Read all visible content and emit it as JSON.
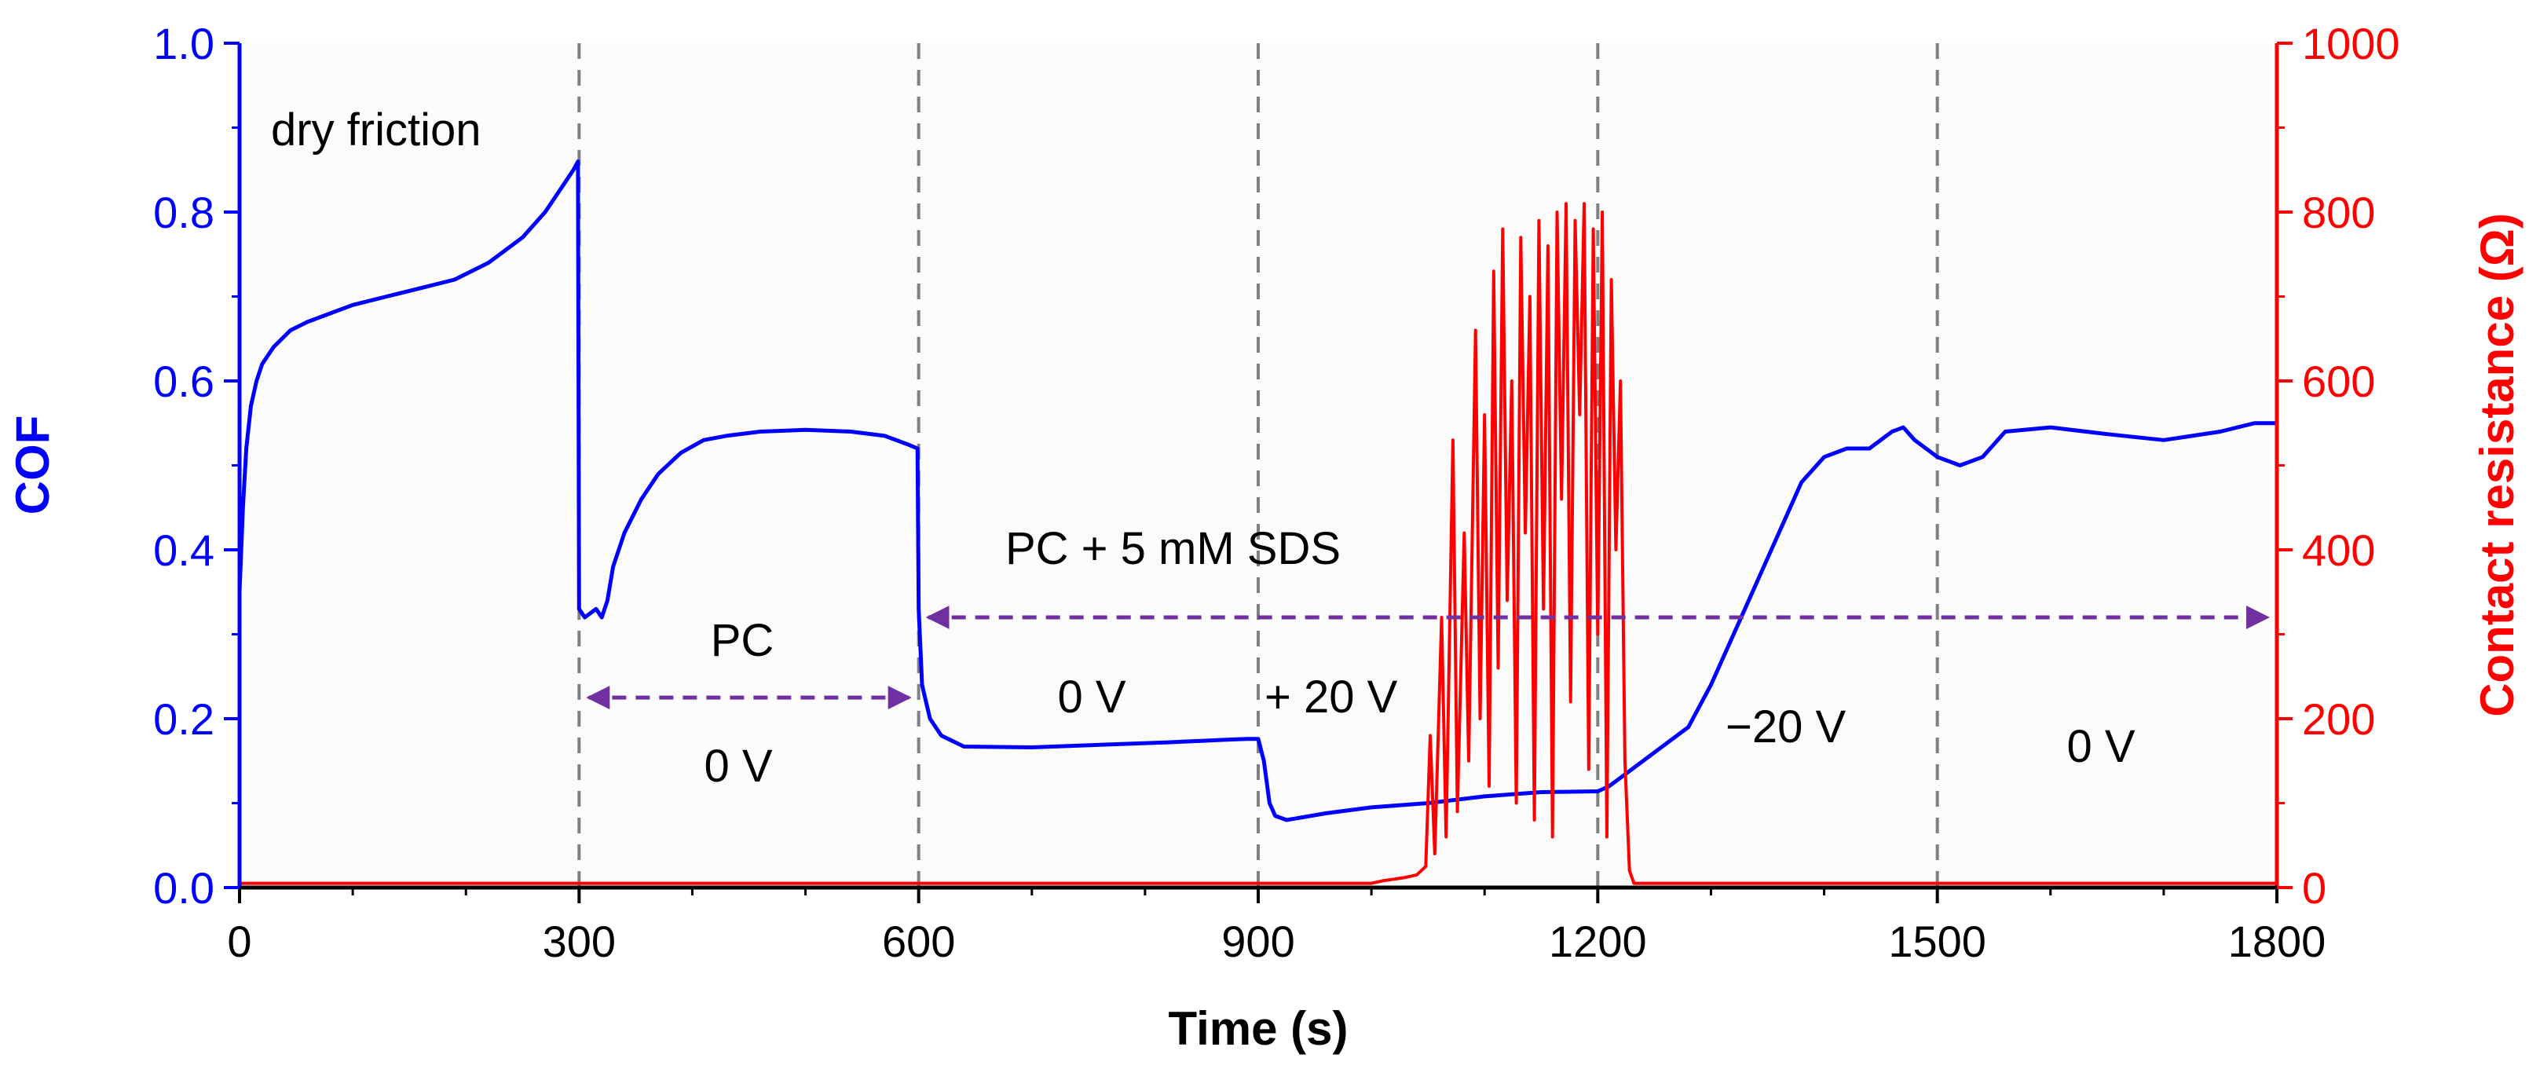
{
  "chart_data": {
    "type": "line",
    "xlabel": "Time (s)",
    "ylabel_left": "COF",
    "ylabel_right": "Contact resistance (Ω)",
    "xlim": [
      0,
      1800
    ],
    "ylim_left": [
      0,
      1.0
    ],
    "ylim_right": [
      0,
      1000
    ],
    "x_ticks": [
      "0",
      "300",
      "600",
      "900",
      "1200",
      "1500",
      "1800"
    ],
    "y_left_ticks": [
      "0.0",
      "0.2",
      "0.4",
      "0.6",
      "0.8",
      "1.0"
    ],
    "y_right_ticks": [
      "0",
      "200",
      "400",
      "600",
      "800",
      "1000"
    ],
    "colors": {
      "cof": "#0000ff",
      "resistance": "#ff0000",
      "arrow": "#7030a0",
      "divider": "#808080"
    },
    "dividers_x": [
      300,
      600,
      900,
      1200,
      1500
    ],
    "series": [
      {
        "name": "COF",
        "axis": "left",
        "points": [
          [
            0,
            0.35
          ],
          [
            3,
            0.45
          ],
          [
            6,
            0.52
          ],
          [
            10,
            0.57
          ],
          [
            15,
            0.6
          ],
          [
            20,
            0.62
          ],
          [
            30,
            0.64
          ],
          [
            45,
            0.66
          ],
          [
            60,
            0.67
          ],
          [
            80,
            0.68
          ],
          [
            100,
            0.69
          ],
          [
            130,
            0.7
          ],
          [
            160,
            0.71
          ],
          [
            190,
            0.72
          ],
          [
            220,
            0.74
          ],
          [
            250,
            0.77
          ],
          [
            270,
            0.8
          ],
          [
            285,
            0.83
          ],
          [
            295,
            0.85
          ],
          [
            299,
            0.86
          ],
          [
            300,
            0.33
          ],
          [
            305,
            0.32
          ],
          [
            315,
            0.33
          ],
          [
            320,
            0.32
          ],
          [
            325,
            0.34
          ],
          [
            330,
            0.38
          ],
          [
            340,
            0.42
          ],
          [
            355,
            0.46
          ],
          [
            370,
            0.49
          ],
          [
            390,
            0.515
          ],
          [
            410,
            0.53
          ],
          [
            430,
            0.535
          ],
          [
            460,
            0.54
          ],
          [
            500,
            0.542
          ],
          [
            540,
            0.54
          ],
          [
            570,
            0.535
          ],
          [
            590,
            0.525
          ],
          [
            599,
            0.52
          ],
          [
            600,
            0.33
          ],
          [
            603,
            0.24
          ],
          [
            610,
            0.2
          ],
          [
            620,
            0.18
          ],
          [
            640,
            0.167
          ],
          [
            700,
            0.166
          ],
          [
            760,
            0.169
          ],
          [
            820,
            0.172
          ],
          [
            870,
            0.175
          ],
          [
            890,
            0.176
          ],
          [
            900,
            0.176
          ],
          [
            905,
            0.15
          ],
          [
            910,
            0.1
          ],
          [
            915,
            0.085
          ],
          [
            925,
            0.08
          ],
          [
            960,
            0.088
          ],
          [
            1000,
            0.095
          ],
          [
            1050,
            0.1
          ],
          [
            1100,
            0.108
          ],
          [
            1150,
            0.113
          ],
          [
            1200,
            0.114
          ],
          [
            1210,
            0.12
          ],
          [
            1220,
            0.13
          ],
          [
            1240,
            0.15
          ],
          [
            1260,
            0.17
          ],
          [
            1280,
            0.19
          ],
          [
            1300,
            0.24
          ],
          [
            1320,
            0.3
          ],
          [
            1340,
            0.36
          ],
          [
            1360,
            0.42
          ],
          [
            1380,
            0.48
          ],
          [
            1400,
            0.51
          ],
          [
            1420,
            0.52
          ],
          [
            1440,
            0.52
          ],
          [
            1460,
            0.54
          ],
          [
            1470,
            0.545
          ],
          [
            1480,
            0.53
          ],
          [
            1500,
            0.51
          ],
          [
            1520,
            0.5
          ],
          [
            1540,
            0.51
          ],
          [
            1560,
            0.54
          ],
          [
            1600,
            0.545
          ],
          [
            1650,
            0.537
          ],
          [
            1700,
            0.53
          ],
          [
            1750,
            0.54
          ],
          [
            1780,
            0.55
          ],
          [
            1800,
            0.55
          ]
        ]
      },
      {
        "name": "Contact resistance",
        "axis": "right",
        "points": [
          [
            0,
            5
          ],
          [
            1000,
            5
          ],
          [
            1010,
            8
          ],
          [
            1020,
            10
          ],
          [
            1030,
            12
          ],
          [
            1040,
            15
          ],
          [
            1048,
            25
          ],
          [
            1052,
            180
          ],
          [
            1056,
            40
          ],
          [
            1062,
            320
          ],
          [
            1066,
            60
          ],
          [
            1072,
            530
          ],
          [
            1076,
            90
          ],
          [
            1082,
            420
          ],
          [
            1086,
            150
          ],
          [
            1092,
            660
          ],
          [
            1096,
            200
          ],
          [
            1100,
            560
          ],
          [
            1104,
            120
          ],
          [
            1108,
            730
          ],
          [
            1112,
            260
          ],
          [
            1116,
            780
          ],
          [
            1120,
            340
          ],
          [
            1124,
            600
          ],
          [
            1128,
            100
          ],
          [
            1132,
            770
          ],
          [
            1136,
            420
          ],
          [
            1140,
            700
          ],
          [
            1144,
            80
          ],
          [
            1148,
            790
          ],
          [
            1152,
            330
          ],
          [
            1156,
            760
          ],
          [
            1160,
            60
          ],
          [
            1164,
            800
          ],
          [
            1168,
            460
          ],
          [
            1172,
            810
          ],
          [
            1176,
            220
          ],
          [
            1180,
            790
          ],
          [
            1184,
            560
          ],
          [
            1188,
            810
          ],
          [
            1192,
            140
          ],
          [
            1196,
            780
          ],
          [
            1200,
            300
          ],
          [
            1204,
            800
          ],
          [
            1208,
            60
          ],
          [
            1212,
            720
          ],
          [
            1216,
            400
          ],
          [
            1220,
            600
          ],
          [
            1224,
            150
          ],
          [
            1228,
            20
          ],
          [
            1232,
            5
          ],
          [
            1800,
            5
          ]
        ]
      }
    ],
    "annotations": {
      "dry_friction": "dry friction",
      "pc": "PC",
      "pc_voltage": "0 V",
      "pc_sds": "PC + 5 mM SDS",
      "sds_0v": "0 V",
      "plus20": "+ 20 V",
      "minus20": "−20 V",
      "final_0v": "0 V"
    },
    "arrows": [
      {
        "from": 300,
        "to": 600,
        "cof_level": 0.225
      },
      {
        "from": 600,
        "to": 1800,
        "cof_level": 0.32
      }
    ]
  }
}
